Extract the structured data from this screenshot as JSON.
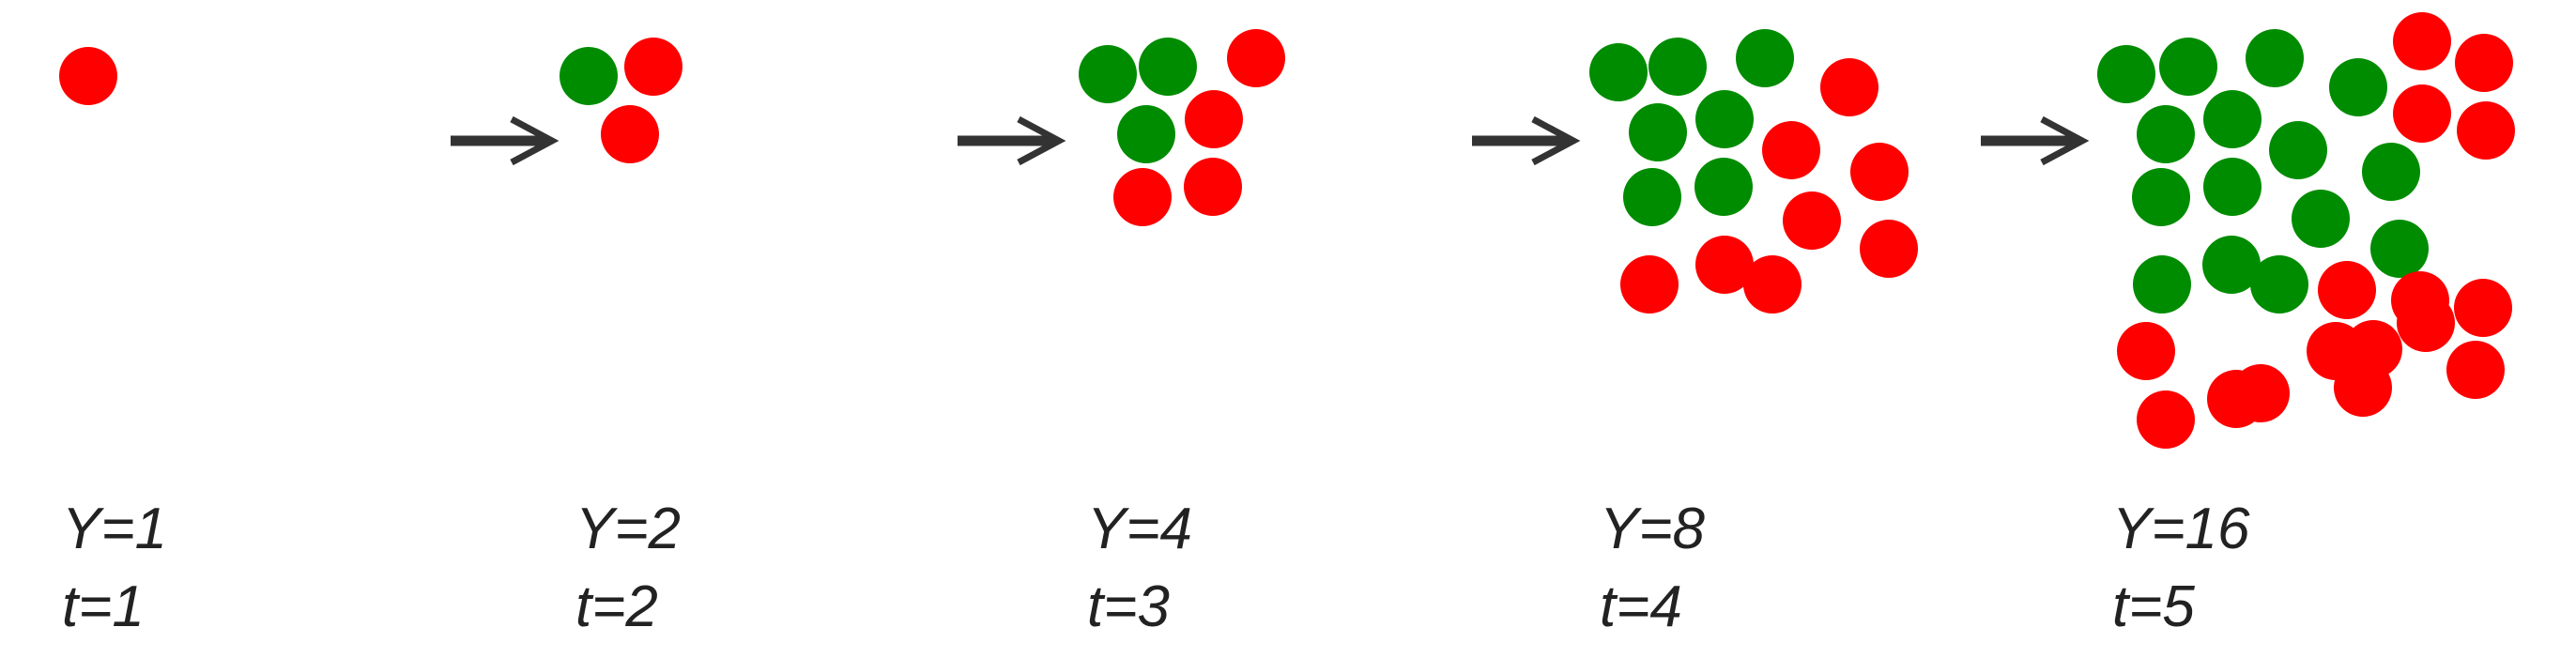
{
  "colors": {
    "green": "#008c00",
    "red": "#ff0000",
    "arrow": "#333333"
  },
  "steps": [
    {
      "y_label": "Y=1",
      "t_label": "t=1",
      "green": 0,
      "red": 1
    },
    {
      "y_label": "Y=2",
      "t_label": "t=2",
      "green": 1,
      "red": 2
    },
    {
      "y_label": "Y=4",
      "t_label": "t=3",
      "green": 3,
      "red": 4
    },
    {
      "y_label": "Y=8",
      "t_label": "t=4",
      "green": 7,
      "red": 8
    },
    {
      "y_label": "Y=16",
      "t_label": "t=5",
      "green": 15,
      "red": 16
    }
  ]
}
